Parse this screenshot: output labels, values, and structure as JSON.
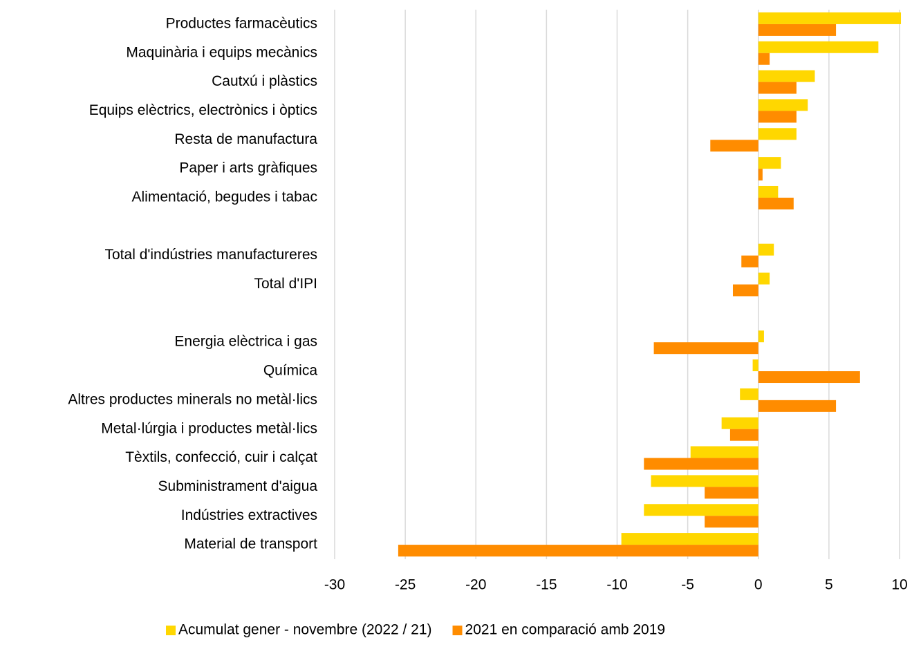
{
  "chart_data": {
    "type": "bar",
    "orientation": "horizontal",
    "categories": [
      "Productes farmacèutics",
      "Maquinària i equips mecànics",
      "Cautxú i plàstics",
      "Equips elèctrics, electrònics i òptics",
      "Resta de manufactura",
      "Paper i arts gràfiques",
      "Alimentació, begudes i tabac",
      null,
      "Total d'indústries manufactureres",
      "Total d'IPI",
      null,
      "Energia elèctrica i gas",
      "Química",
      "Altres productes minerals no metàl·lics",
      "Metal·lúrgia i productes metàl·lics",
      "Tèxtils, confecció, cuir i calçat",
      "Subministrament d'aigua",
      "Indústries extractives",
      "Material de transport"
    ],
    "series": [
      {
        "name": "Acumulat gener - novembre (2022 / 21)",
        "color": "#ffd700",
        "values": [
          10.1,
          8.5,
          4.0,
          3.5,
          2.7,
          1.6,
          1.4,
          null,
          1.1,
          0.8,
          null,
          0.4,
          -0.4,
          -1.3,
          -2.6,
          -4.8,
          -7.6,
          -8.1,
          -9.7
        ]
      },
      {
        "name": "2021 en comparació amb 2019",
        "color": "#ff8c00",
        "values": [
          5.5,
          0.8,
          2.7,
          2.7,
          -3.4,
          0.3,
          2.5,
          null,
          -1.2,
          -1.8,
          null,
          -7.4,
          7.2,
          5.5,
          -2.0,
          -8.1,
          -3.8,
          -3.8,
          -25.5
        ]
      }
    ],
    "xlim": [
      -30,
      10
    ],
    "xticks": [
      -30,
      -25,
      -20,
      -15,
      -10,
      -5,
      0,
      5,
      10
    ],
    "grid": true,
    "legend": "bottom"
  }
}
